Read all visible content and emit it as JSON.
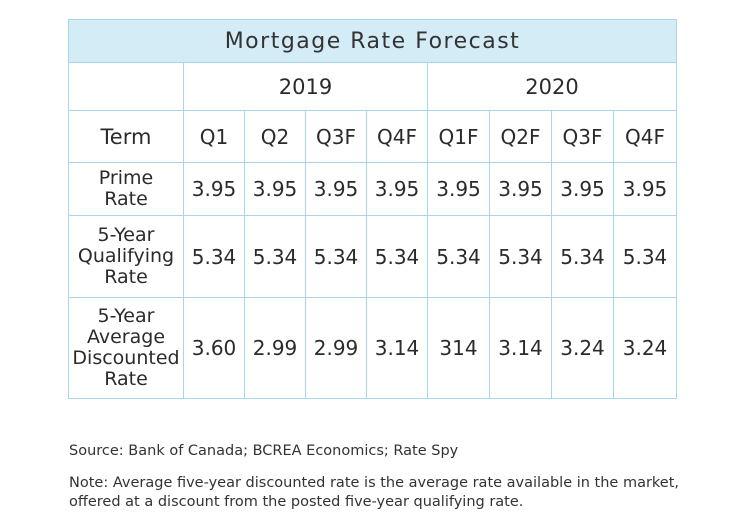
{
  "chart_data": {
    "type": "table",
    "title": "Mortgage Rate Forecast",
    "years": [
      {
        "label": "2019",
        "span": 4
      },
      {
        "label": "2020",
        "span": 4
      }
    ],
    "term_header": "Term",
    "columns": [
      "Q1",
      "Q2",
      "Q3F",
      "Q4F",
      "Q1F",
      "Q2F",
      "Q3F",
      "Q4F"
    ],
    "rows": [
      {
        "label_lines": [
          "Prime",
          "Rate"
        ],
        "values": [
          "3.95",
          "3.95",
          "3.95",
          "3.95",
          "3.95",
          "3.95",
          "3.95",
          "3.95"
        ]
      },
      {
        "label_lines": [
          "5-Year",
          "Qualifying",
          "Rate"
        ],
        "values": [
          "5.34",
          "5.34",
          "5.34",
          "5.34",
          "5.34",
          "5.34",
          "5.34",
          "5.34"
        ]
      },
      {
        "label_lines": [
          "5-Year",
          "Average",
          "Discounted",
          "Rate"
        ],
        "values": [
          "3.60",
          "2.99",
          "2.99",
          "3.14",
          "314",
          "3.14",
          "3.24",
          "3.24"
        ]
      }
    ]
  },
  "footnotes": {
    "source": "Source: Bank of Canada; BCREA Economics; Rate Spy",
    "note": "Note: Average five-year discounted rate is the average rate available in the market, offered at a discount from the posted five-year qualifying rate."
  }
}
